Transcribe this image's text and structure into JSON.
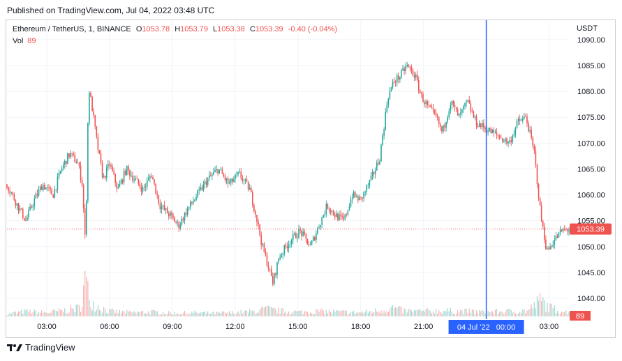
{
  "header": {
    "published": "Published on TradingView.com, Jul 04, 2022 03:48 UTC"
  },
  "legend": {
    "symbol": "Ethereum / TetherUS, 1, BINANCE",
    "o_label": "O",
    "o_value": "1053.78",
    "h_label": "H",
    "h_value": "1053.79",
    "l_label": "L",
    "l_value": "1053.38",
    "c_label": "C",
    "c_value": "1053.39",
    "change": "-0.40 (-0.04%)",
    "vol_label": "Vol",
    "vol_value": "89"
  },
  "axis": {
    "currency": "USDT"
  },
  "footer": {
    "brand": "TradingView"
  },
  "colors": {
    "up": "#26a69a",
    "down": "#ef5350",
    "crosshair": "#2962ff",
    "last_price_label": "#ef5350"
  },
  "chart_data": {
    "type": "candlestick",
    "title": "Ethereum / TetherUS, 1, BINANCE",
    "y_ticks": [
      1040,
      1045,
      1050,
      1055,
      1060,
      1065,
      1070,
      1075,
      1080,
      1085,
      1090
    ],
    "ylim": [
      1036.5,
      1092
    ],
    "x_ticks": [
      "03:00",
      "06:00",
      "09:00",
      "12:00",
      "15:00",
      "18:00",
      "21:00",
      "03:00"
    ],
    "x_range_hours": [
      1.1,
      27.95
    ],
    "last_price": 1053.39,
    "last_price_label": "1053.39",
    "last_volume_label": "89",
    "crosshair": {
      "x_label": "04 Jul '22   00:00",
      "x_hours": 24.0
    },
    "price_path": [
      [
        1.1,
        1062
      ],
      [
        1.6,
        1058
      ],
      [
        2.0,
        1055
      ],
      [
        2.4,
        1059
      ],
      [
        2.8,
        1062
      ],
      [
        3.3,
        1060
      ],
      [
        3.7,
        1065
      ],
      [
        4.1,
        1068
      ],
      [
        4.5,
        1066
      ],
      [
        4.7,
        1062
      ],
      [
        4.85,
        1050
      ],
      [
        5.0,
        1081
      ],
      [
        5.2,
        1076
      ],
      [
        5.4,
        1070
      ],
      [
        5.7,
        1063
      ],
      [
        6.0,
        1066
      ],
      [
        6.4,
        1061
      ],
      [
        6.8,
        1065
      ],
      [
        7.2,
        1063
      ],
      [
        7.6,
        1061
      ],
      [
        8.0,
        1064
      ],
      [
        8.4,
        1058
      ],
      [
        8.9,
        1056
      ],
      [
        9.3,
        1054
      ],
      [
        9.7,
        1057
      ],
      [
        10.2,
        1060
      ],
      [
        10.7,
        1063
      ],
      [
        11.2,
        1065
      ],
      [
        11.7,
        1062
      ],
      [
        12.2,
        1064
      ],
      [
        12.7,
        1061
      ],
      [
        13.0,
        1056
      ],
      [
        13.3,
        1050
      ],
      [
        13.6,
        1046
      ],
      [
        13.8,
        1043
      ],
      [
        14.1,
        1048
      ],
      [
        14.6,
        1051
      ],
      [
        15.1,
        1053
      ],
      [
        15.6,
        1050
      ],
      [
        16.0,
        1054
      ],
      [
        16.4,
        1058
      ],
      [
        16.8,
        1056
      ],
      [
        17.2,
        1055
      ],
      [
        17.6,
        1060
      ],
      [
        18.0,
        1059
      ],
      [
        18.5,
        1063
      ],
      [
        18.9,
        1067
      ],
      [
        19.3,
        1079
      ],
      [
        19.6,
        1082
      ],
      [
        19.9,
        1083
      ],
      [
        20.2,
        1085
      ],
      [
        20.6,
        1083
      ],
      [
        20.9,
        1079
      ],
      [
        21.2,
        1077
      ],
      [
        21.6,
        1075
      ],
      [
        21.9,
        1072
      ],
      [
        22.3,
        1078
      ],
      [
        22.7,
        1075
      ],
      [
        23.1,
        1078
      ],
      [
        23.5,
        1074
      ],
      [
        23.9,
        1073
      ],
      [
        24.3,
        1072
      ],
      [
        24.7,
        1071
      ],
      [
        25.1,
        1070
      ],
      [
        25.5,
        1074
      ],
      [
        25.9,
        1075
      ],
      [
        26.3,
        1068
      ],
      [
        26.6,
        1056
      ],
      [
        26.9,
        1049
      ],
      [
        27.2,
        1051
      ],
      [
        27.6,
        1053
      ],
      [
        27.95,
        1053.39
      ]
    ],
    "volume_path": [
      [
        1.1,
        4
      ],
      [
        2.0,
        8
      ],
      [
        3.0,
        6
      ],
      [
        4.0,
        10
      ],
      [
        4.6,
        14
      ],
      [
        4.85,
        60
      ],
      [
        5.0,
        32
      ],
      [
        5.3,
        18
      ],
      [
        6.0,
        8
      ],
      [
        7.0,
        6
      ],
      [
        8.0,
        7
      ],
      [
        9.0,
        5
      ],
      [
        10.0,
        6
      ],
      [
        11.0,
        5
      ],
      [
        12.0,
        6
      ],
      [
        13.0,
        8
      ],
      [
        13.5,
        12
      ],
      [
        14.0,
        9
      ],
      [
        15.0,
        7
      ],
      [
        16.0,
        8
      ],
      [
        17.0,
        7
      ],
      [
        18.0,
        6
      ],
      [
        19.0,
        10
      ],
      [
        19.5,
        14
      ],
      [
        20.0,
        9
      ],
      [
        21.0,
        8
      ],
      [
        22.0,
        9
      ],
      [
        23.0,
        8
      ],
      [
        24.0,
        7
      ],
      [
        25.0,
        8
      ],
      [
        26.0,
        9
      ],
      [
        26.6,
        26
      ],
      [
        27.0,
        14
      ],
      [
        27.95,
        6
      ]
    ]
  }
}
